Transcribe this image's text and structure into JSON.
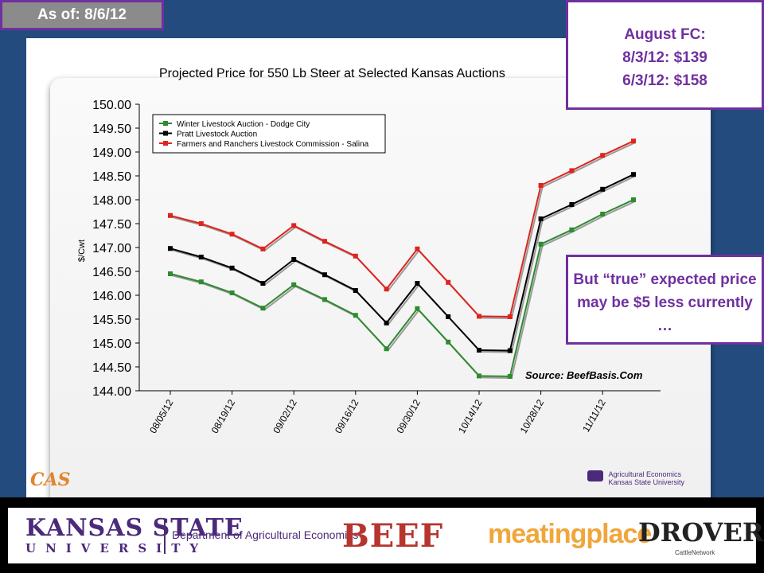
{
  "asof": "As of: 8/6/12",
  "callout_fc": {
    "line1": "August FC:",
    "line2": "8/3/12: $139",
    "line3": "6/3/12: $158"
  },
  "callout_note": "But “true” expected price may be $5 less currently …",
  "logos": {
    "cas": "CAS",
    "ag_econ": [
      "Agricultural Economics",
      "Kansas State University"
    ],
    "ksu_line1": "KANSAS STATE",
    "ksu_line2": "UNIVERSITY",
    "dept": "Department of Agricultural Economics",
    "beef": "BEEF",
    "meatingplace": "meatingplace",
    "drovers": "DROVERS",
    "drovers_sub": "CattleNetwork"
  },
  "colors": {
    "green": "#2e8b2e",
    "black": "#000000",
    "red": "#e0241c",
    "callout": "#7030a0"
  },
  "chart_data": {
    "type": "line",
    "title": "Projected Price for 550 Lb Steer at Selected Kansas Auctions",
    "ylabel": "$/Cwt",
    "xlabel": "",
    "source": "Source: BeefBasis.Com",
    "ylim": [
      144.0,
      150.0
    ],
    "yticks": [
      "150.00",
      "149.50",
      "149.00",
      "148.50",
      "148.00",
      "147.50",
      "147.00",
      "146.50",
      "146.00",
      "145.50",
      "145.00",
      "144.50",
      "144.00"
    ],
    "xtick_labels": [
      "08/05/12",
      "08/19/12",
      "09/02/12",
      "09/16/12",
      "09/30/12",
      "10/14/12",
      "10/28/12",
      "11/11/12"
    ],
    "x": [
      "08/05/12",
      "08/12/12",
      "08/19/12",
      "08/26/12",
      "09/02/12",
      "09/09/12",
      "09/16/12",
      "09/23/12",
      "09/30/12",
      "10/07/12",
      "10/14/12",
      "10/21/12",
      "10/28/12",
      "11/04/12",
      "11/11/12",
      "11/18/12"
    ],
    "legend_position": "top-left",
    "grid": false,
    "series": [
      {
        "name": "Winter Livestock Auction - Dodge City",
        "color": "#2e8b2e",
        "values": [
          146.45,
          146.28,
          146.05,
          145.73,
          146.22,
          145.91,
          145.58,
          144.88,
          145.72,
          145.02,
          144.31,
          144.3,
          147.07,
          147.37,
          147.7,
          148.0
        ]
      },
      {
        "name": "Pratt Livestock Auction",
        "color": "#000000",
        "values": [
          146.98,
          146.8,
          146.57,
          146.25,
          146.75,
          146.43,
          146.1,
          145.42,
          146.25,
          145.55,
          144.85,
          144.84,
          147.6,
          147.9,
          148.22,
          148.53
        ]
      },
      {
        "name": "Farmers and Ranchers Livestock Commission - Salina",
        "color": "#e0241c",
        "values": [
          147.67,
          147.5,
          147.28,
          146.97,
          147.46,
          147.13,
          146.82,
          146.13,
          146.97,
          146.27,
          145.56,
          145.55,
          148.3,
          148.61,
          148.93,
          149.23
        ]
      }
    ]
  }
}
